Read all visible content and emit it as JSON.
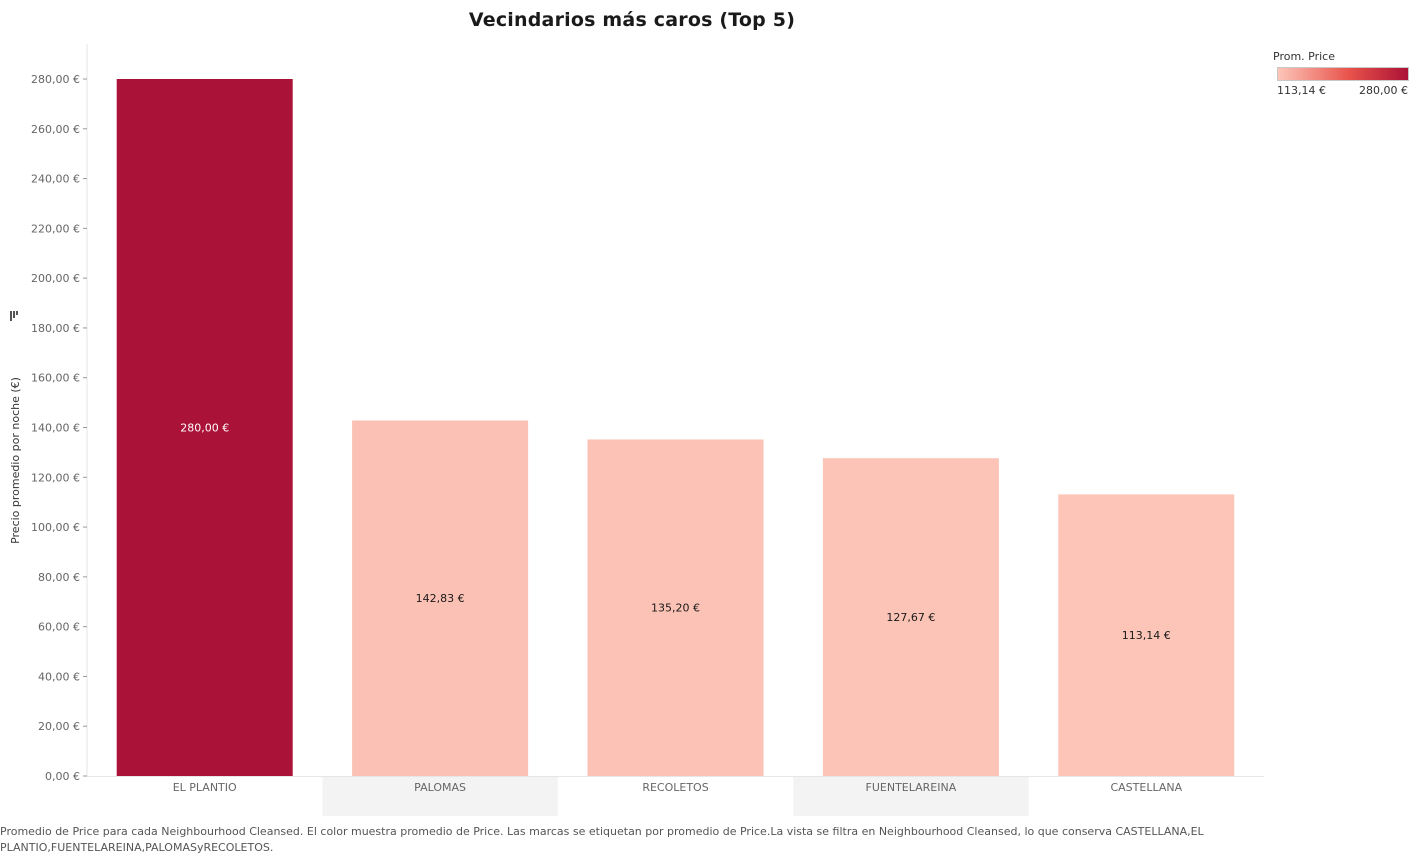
{
  "chart_data": {
    "type": "bar",
    "title": "Vecindarios más caros (Top 5)",
    "xlabel": "",
    "ylabel": "Precio promedio por noche (€)",
    "categories": [
      "EL PLANTIO",
      "PALOMAS",
      "RECOLETOS",
      "FUENTELAREINA",
      "CASTELLANA"
    ],
    "values": [
      280.0,
      142.83,
      135.2,
      127.67,
      113.14
    ],
    "data_labels": [
      "280,00 €",
      "142,83 €",
      "135,20 €",
      "127,67 €",
      "113,14 €"
    ],
    "ylim": [
      0,
      280
    ],
    "yticks": [
      0,
      20,
      40,
      60,
      80,
      100,
      120,
      140,
      160,
      180,
      200,
      220,
      240,
      260,
      280
    ],
    "ytick_labels": [
      "0,00 €",
      "20,00 €",
      "40,00 €",
      "60,00 €",
      "80,00 €",
      "100,00 €",
      "120,00 €",
      "140,00 €",
      "160,00 €",
      "180,00 €",
      "200,00 €",
      "220,00 €",
      "240,00 €",
      "260,00 €",
      "280,00 €"
    ],
    "grid": false,
    "sorted_descending": true,
    "legend": {
      "title": "Prom. Price",
      "placement": "top-right",
      "min_label": "113,14 €",
      "max_label": "280,00 €",
      "color_min": "#fcc5b8",
      "color_mid": "#e8524a",
      "color_max": "#ab1237"
    }
  },
  "caption": "Promedio de Price para cada Neighbourhood Cleansed. El color muestra promedio de Price. Las marcas se etiquetan por promedio de Price.La vista se filtra en Neighbourhood Cleansed, lo que conserva CASTELLANA,EL PLANTIO,FUENTELAREINA,PALOMASyRECOLETOS.",
  "colors": {
    "label_dark": "#1a1a1a",
    "label_light": "#ffffff",
    "band_shade": "#f3f3f3",
    "axis_text": "#666666",
    "axis_line": "#e6e6e6"
  }
}
